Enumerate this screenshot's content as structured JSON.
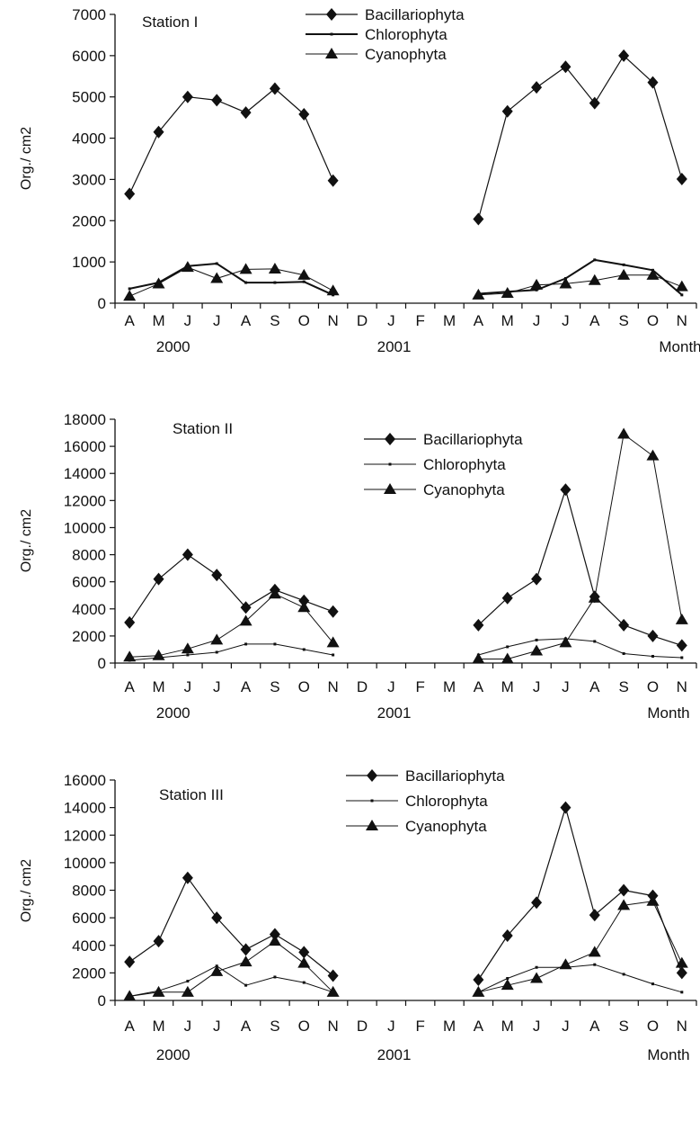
{
  "chart_data": [
    {
      "type": "line",
      "title": "Station I",
      "ylabel": "Org./ cm2",
      "ylim": [
        0,
        7000
      ],
      "yticks": [
        0,
        1000,
        2000,
        3000,
        4000,
        5000,
        6000,
        7000
      ],
      "categories": [
        "A",
        "M",
        "J",
        "J",
        "A",
        "S",
        "O",
        "N",
        "D",
        "J",
        "F",
        "M",
        "A",
        "M",
        "J",
        "J",
        "A",
        "S",
        "O",
        "N"
      ],
      "year_labels": [
        "2000",
        "2001"
      ],
      "xlabel": "Month",
      "legend_position": "top-center",
      "series": [
        {
          "name": "Bacillariophyta",
          "marker": "diamond",
          "stroke_width": 1.2,
          "values": [
            2650,
            4150,
            5000,
            4920,
            4620,
            5200,
            4580,
            2970,
            null,
            null,
            null,
            null,
            2040,
            4650,
            5230,
            5730,
            4850,
            6000,
            5350,
            3010
          ]
        },
        {
          "name": "Chlorophyta",
          "marker": "dot",
          "stroke_width": 2,
          "values": [
            350,
            500,
            900,
            960,
            500,
            500,
            520,
            200,
            null,
            null,
            null,
            null,
            230,
            280,
            320,
            600,
            1050,
            930,
            800,
            200
          ]
        },
        {
          "name": "Cyanophyta",
          "marker": "triangle",
          "stroke_width": 1,
          "values": [
            170,
            470,
            870,
            600,
            820,
            830,
            680,
            300,
            null,
            null,
            null,
            null,
            200,
            240,
            440,
            470,
            550,
            680,
            680,
            400
          ]
        }
      ]
    },
    {
      "type": "line",
      "title": "Station II",
      "ylabel": "Org./ cm2",
      "ylim": [
        0,
        18000
      ],
      "yticks": [
        0,
        2000,
        4000,
        6000,
        8000,
        10000,
        12000,
        14000,
        16000,
        18000
      ],
      "categories": [
        "A",
        "M",
        "J",
        "J",
        "A",
        "S",
        "O",
        "N",
        "D",
        "J",
        "F",
        "M",
        "A",
        "M",
        "J",
        "J",
        "A",
        "S",
        "O",
        "N"
      ],
      "year_labels": [
        "2000",
        "2001"
      ],
      "xlabel": "Month",
      "legend_position": "top-center",
      "series": [
        {
          "name": "Bacillariophyta",
          "marker": "diamond",
          "stroke_width": 1.2,
          "values": [
            3000,
            6200,
            8000,
            6500,
            4100,
            5400,
            4600,
            3800,
            null,
            null,
            null,
            null,
            2800,
            4800,
            6200,
            12800,
            4900,
            2800,
            2000,
            1300
          ]
        },
        {
          "name": "Chlorophyta",
          "marker": "dot",
          "stroke_width": 1,
          "values": [
            200,
            400,
            600,
            800,
            1400,
            1400,
            1000,
            600,
            null,
            null,
            null,
            null,
            600,
            1200,
            1700,
            1800,
            1600,
            700,
            500,
            400
          ]
        },
        {
          "name": "Cyanophyta",
          "marker": "triangle",
          "stroke_width": 1,
          "values": [
            450,
            550,
            1050,
            1700,
            3100,
            5100,
            4100,
            1500,
            null,
            null,
            null,
            null,
            300,
            300,
            900,
            1500,
            4800,
            16900,
            15300,
            3200
          ]
        }
      ]
    },
    {
      "type": "line",
      "title": "Station III",
      "ylabel": "Org./ cm2",
      "ylim": [
        0,
        16000
      ],
      "yticks": [
        0,
        2000,
        4000,
        6000,
        8000,
        10000,
        12000,
        14000,
        16000
      ],
      "categories": [
        "A",
        "M",
        "J",
        "J",
        "A",
        "S",
        "O",
        "N",
        "D",
        "J",
        "F",
        "M",
        "A",
        "M",
        "J",
        "J",
        "A",
        "S",
        "O",
        "N"
      ],
      "year_labels": [
        "2000",
        "2001"
      ],
      "xlabel": "Month",
      "legend_position": "top-center",
      "series": [
        {
          "name": "Bacillariophyta",
          "marker": "diamond",
          "stroke_width": 1.2,
          "values": [
            2800,
            4300,
            8900,
            6000,
            3700,
            4800,
            3500,
            1800,
            null,
            null,
            null,
            null,
            1500,
            4700,
            7100,
            14000,
            6200,
            8000,
            7600,
            2000
          ]
        },
        {
          "name": "Chlorophyta",
          "marker": "dot",
          "stroke_width": 1,
          "values": [
            300,
            700,
            1400,
            2500,
            1100,
            1700,
            1300,
            600,
            null,
            null,
            null,
            null,
            600,
            1600,
            2400,
            2400,
            2600,
            1900,
            1200,
            600
          ]
        },
        {
          "name": "Cyanophyta",
          "marker": "triangle",
          "stroke_width": 1,
          "values": [
            300,
            600,
            600,
            2100,
            2800,
            4300,
            2700,
            600,
            null,
            null,
            null,
            null,
            600,
            1100,
            1600,
            2600,
            3500,
            6900,
            7200,
            2700
          ]
        }
      ]
    }
  ]
}
